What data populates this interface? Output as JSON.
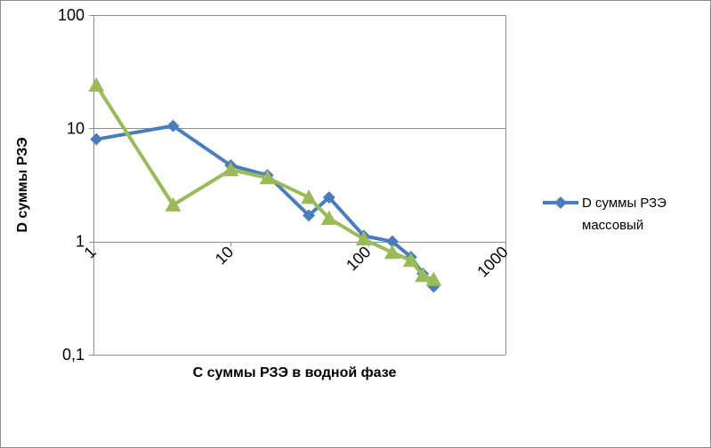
{
  "chart_data": {
    "type": "line",
    "xscale": "log",
    "yscale": "log",
    "xlim": [
      1,
      1000
    ],
    "ylim": [
      0.1,
      100
    ],
    "xlabel": "С суммы РЗЭ в водной фазе",
    "ylabel": "D суммы РЗЭ",
    "x_tick_labels": [
      "1",
      "10",
      "100",
      "1000"
    ],
    "y_tick_labels": [
      "0,1",
      "1",
      "10",
      "100"
    ],
    "legend_position": "right",
    "grid": "horizontal",
    "series": [
      {
        "name": "D суммы РЗЭ массовый",
        "color": "#4a7ebb",
        "marker": "diamond",
        "legend_lines": [
          "D суммы РЗЭ",
          "массовый"
        ],
        "points": [
          {
            "x": 1.05,
            "y": 8.0
          },
          {
            "x": 3.8,
            "y": 10.5
          },
          {
            "x": 10.0,
            "y": 4.7
          },
          {
            "x": 18.5,
            "y": 3.85
          },
          {
            "x": 37.0,
            "y": 1.7
          },
          {
            "x": 52.0,
            "y": 2.45
          },
          {
            "x": 93.0,
            "y": 1.12
          },
          {
            "x": 150.0,
            "y": 1.0
          },
          {
            "x": 205.0,
            "y": 0.73
          },
          {
            "x": 250.0,
            "y": 0.52
          },
          {
            "x": 300.0,
            "y": 0.4
          }
        ]
      },
      {
        "name": "",
        "color": "#9bbb59",
        "marker": "triangle",
        "points": [
          {
            "x": 1.05,
            "y": 24.0
          },
          {
            "x": 3.8,
            "y": 2.1
          },
          {
            "x": 10.0,
            "y": 4.3
          },
          {
            "x": 18.5,
            "y": 3.65
          },
          {
            "x": 37.0,
            "y": 2.45
          },
          {
            "x": 52.0,
            "y": 1.6
          },
          {
            "x": 93.0,
            "y": 1.05
          },
          {
            "x": 150.0,
            "y": 0.8
          },
          {
            "x": 205.0,
            "y": 0.68
          },
          {
            "x": 250.0,
            "y": 0.5
          },
          {
            "x": 300.0,
            "y": 0.46
          }
        ]
      }
    ]
  }
}
